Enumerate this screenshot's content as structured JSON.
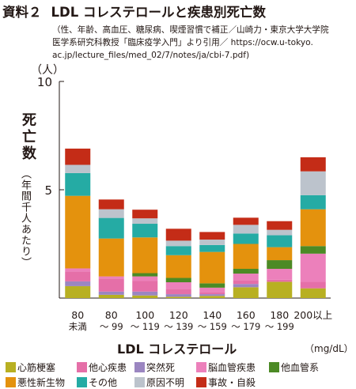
{
  "header": {
    "number": "資料２",
    "title": "LDL コレステロールと疾患別死亡数"
  },
  "source_note": [
    "（性、年齢、高血圧、糖尿病、喫煙習慣で補正／山崎力・東京大学大学院",
    "医学系研究科教授「臨床疫学入門」より引用／ https://ocw.u-tokyo.",
    "ac.jp/lecture_files/med_02/7/notes/ja/cbi-7.pdf)"
  ],
  "chart_data": {
    "type": "bar",
    "stacked": true,
    "y_unit": "（人）",
    "ylabel": "死亡数",
    "ylabel_sub": "（年間千人あたり）",
    "xlabel": "LDL コレステロール",
    "x_unit": "（mg/dL）",
    "ylim": [
      0,
      10
    ],
    "yticks": [
      5,
      10
    ],
    "categories": [
      [
        "80",
        "未満"
      ],
      [
        "80",
        "～ 99"
      ],
      [
        "100",
        "～ 119"
      ],
      [
        "120",
        "～ 139"
      ],
      [
        "140",
        "～ 159"
      ],
      [
        "160",
        "～ 179"
      ],
      [
        "180",
        "～ 199"
      ],
      [
        "200以上",
        ""
      ]
    ],
    "series": [
      {
        "name": "心筋梗塞",
        "color": "#b8b022",
        "values": [
          0.55,
          0.15,
          0.12,
          0.06,
          0.1,
          0.5,
          0.75,
          0.45
        ]
      },
      {
        "name": "突然死",
        "color": "#9b86c1",
        "values": [
          0.22,
          0.15,
          0.18,
          0.12,
          0.08,
          0.15,
          0.0,
          0.0
        ]
      },
      {
        "name": "他心疾患",
        "color": "#e56fa8",
        "values": [
          0.45,
          0.6,
          0.5,
          0.25,
          0.1,
          0.18,
          0.1,
          0.3
        ]
      },
      {
        "name": "脳血管疾患",
        "color": "#ec80bb",
        "values": [
          0.15,
          0.1,
          0.2,
          0.3,
          0.2,
          0.3,
          0.5,
          1.3
        ]
      },
      {
        "name": "他血管系",
        "color": "#4c8a25",
        "values": [
          0.0,
          0.0,
          0.15,
          0.2,
          0.2,
          0.22,
          0.4,
          0.35
        ]
      },
      {
        "name": "悪性新生物",
        "color": "#e4920d",
        "values": [
          3.35,
          1.75,
          1.65,
          1.05,
          1.45,
          1.15,
          0.6,
          1.7
        ]
      },
      {
        "name": "その他",
        "color": "#25aba4",
        "values": [
          1.05,
          0.95,
          0.63,
          0.42,
          0.32,
          0.48,
          0.55,
          0.65
        ]
      },
      {
        "name": "原因不明",
        "color": "#bcc3cc",
        "values": [
          0.38,
          0.4,
          0.25,
          0.25,
          0.25,
          0.4,
          0.25,
          1.1
        ]
      },
      {
        "name": "事故・自殺",
        "color": "#c42c17",
        "values": [
          0.75,
          0.45,
          0.4,
          0.55,
          0.35,
          0.33,
          0.4,
          0.65
        ]
      }
    ],
    "legend_rows": [
      [
        "心筋梗塞",
        "他心疾患",
        "突然死",
        "脳血管疾患",
        "他血管系"
      ],
      [
        "悪性新生物",
        "その他",
        "原因不明",
        "事故・自殺"
      ]
    ]
  }
}
